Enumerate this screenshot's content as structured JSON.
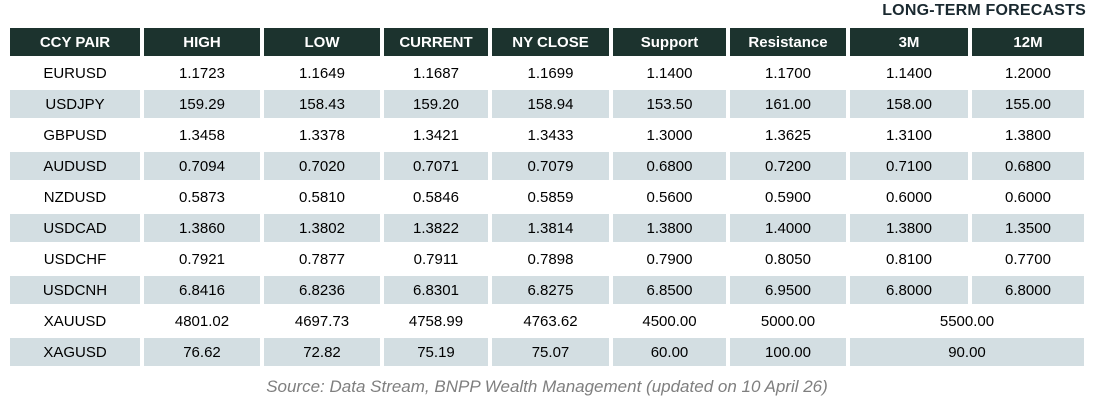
{
  "title": "LONG-TERM FORECASTS",
  "footer": {
    "source": "Source: Data Stream, BNPP Wealth Management (updated on 10 April 26)"
  },
  "colors": {
    "header_bg": "#1c332e",
    "header_text": "#ffffff",
    "row_alt_bg": "#d3dee2",
    "title_text": "#1a2930",
    "footer_text": "#7f7f7f"
  },
  "chart_data": {
    "type": "table",
    "title": "LONG-TERM FORECASTS",
    "source_note": "Source: Data Stream, BNPP Wealth Management (updated on 10 April 26)",
    "columns": [
      "CCY PAIR",
      "HIGH",
      "LOW",
      "CURRENT",
      "NY CLOSE",
      "Support",
      "Resistance",
      "3M",
      "12M"
    ],
    "column_keys": [
      "ccy-pair",
      "high",
      "low",
      "current",
      "ny-close",
      "support",
      "resistance",
      "3m",
      "12m"
    ],
    "rows": [
      {
        "cells": [
          "EURUSD",
          "1.1723",
          "1.1649",
          "1.1687",
          "1.1699",
          "1.1400",
          "1.1700",
          "1.1400",
          "1.2000"
        ],
        "merged_forecast": false
      },
      {
        "cells": [
          "USDJPY",
          "159.29",
          "158.43",
          "159.20",
          "158.94",
          "153.50",
          "161.00",
          "158.00",
          "155.00"
        ],
        "merged_forecast": false
      },
      {
        "cells": [
          "GBPUSD",
          "1.3458",
          "1.3378",
          "1.3421",
          "1.3433",
          "1.3000",
          "1.3625",
          "1.3100",
          "1.3800"
        ],
        "merged_forecast": false
      },
      {
        "cells": [
          "AUDUSD",
          "0.7094",
          "0.7020",
          "0.7071",
          "0.7079",
          "0.6800",
          "0.7200",
          "0.7100",
          "0.6800"
        ],
        "merged_forecast": false
      },
      {
        "cells": [
          "NZDUSD",
          "0.5873",
          "0.5810",
          "0.5846",
          "0.5859",
          "0.5600",
          "0.5900",
          "0.6000",
          "0.6000"
        ],
        "merged_forecast": false
      },
      {
        "cells": [
          "USDCAD",
          "1.3860",
          "1.3802",
          "1.3822",
          "1.3814",
          "1.3800",
          "1.4000",
          "1.3800",
          "1.3500"
        ],
        "merged_forecast": false
      },
      {
        "cells": [
          "USDCHF",
          "0.7921",
          "0.7877",
          "0.7911",
          "0.7898",
          "0.7900",
          "0.8050",
          "0.8100",
          "0.7700"
        ],
        "merged_forecast": false
      },
      {
        "cells": [
          "USDCNH",
          "6.8416",
          "6.8236",
          "6.8301",
          "6.8275",
          "6.8500",
          "6.9500",
          "6.8000",
          "6.8000"
        ],
        "merged_forecast": false
      },
      {
        "cells": [
          "XAUUSD",
          "4801.02",
          "4697.73",
          "4758.99",
          "4763.62",
          "4500.00",
          "5000.00",
          "5500.00"
        ],
        "merged_forecast": true
      },
      {
        "cells": [
          "XAGUSD",
          "76.62",
          "72.82",
          "75.19",
          "75.07",
          "60.00",
          "100.00",
          "90.00"
        ],
        "merged_forecast": true
      }
    ]
  }
}
